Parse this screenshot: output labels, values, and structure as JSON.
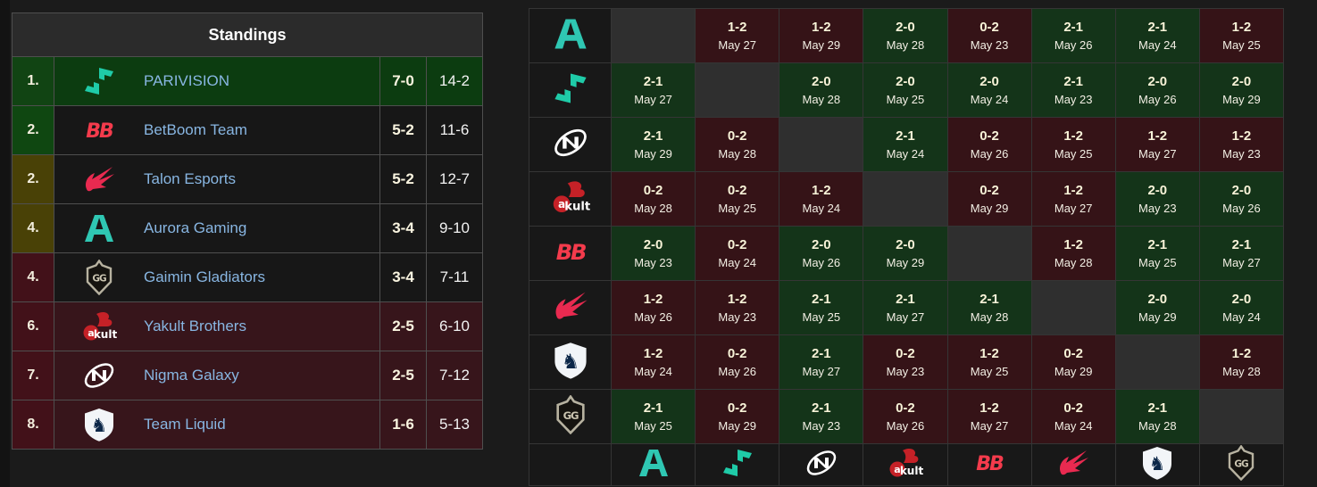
{
  "teams": {
    "parivision": "PARIVISION",
    "betboom": "BetBoom Team",
    "talon": "Talon Esports",
    "aurora": "Aurora Gaming",
    "gaimin": "Gaimin Gladiators",
    "yakult": "Yakult Brothers",
    "nigma": "Nigma Galaxy",
    "liquid": "Team Liquid"
  },
  "standings": {
    "title": "Standings",
    "rows": [
      {
        "rank": "1.",
        "team": "PARIVISION",
        "logo": "parivision",
        "series": "7-0",
        "games": "14-2",
        "rank_status": "green",
        "row_status": "win"
      },
      {
        "rank": "2.",
        "team": "BetBoom Team",
        "logo": "betboom",
        "series": "5-2",
        "games": "11-6",
        "rank_status": "green",
        "row_status": "none"
      },
      {
        "rank": "2.",
        "team": "Talon Esports",
        "logo": "talon",
        "series": "5-2",
        "games": "12-7",
        "rank_status": "olive",
        "row_status": "none"
      },
      {
        "rank": "4.",
        "team": "Aurora Gaming",
        "logo": "aurora",
        "series": "3-4",
        "games": "9-10",
        "rank_status": "olive",
        "row_status": "none"
      },
      {
        "rank": "4.",
        "team": "Gaimin Gladiators",
        "logo": "gaimin",
        "series": "3-4",
        "games": "7-11",
        "rank_status": "red",
        "row_status": "none"
      },
      {
        "rank": "6.",
        "team": "Yakult Brothers",
        "logo": "yakult",
        "series": "2-5",
        "games": "6-10",
        "rank_status": "red",
        "row_status": "loss"
      },
      {
        "rank": "7.",
        "team": "Nigma Galaxy",
        "logo": "nigma",
        "series": "2-5",
        "games": "7-12",
        "rank_status": "red",
        "row_status": "loss"
      },
      {
        "rank": "8.",
        "team": "Team Liquid",
        "logo": "liquid",
        "series": "1-6",
        "games": "5-13",
        "rank_status": "red",
        "row_status": "loss"
      }
    ]
  },
  "crosstable": {
    "rows": [
      {
        "team": "aurora",
        "cells": [
          null,
          {
            "score": "1-2",
            "date": "May 27",
            "result": "loss"
          },
          {
            "score": "1-2",
            "date": "May 29",
            "result": "loss"
          },
          {
            "score": "2-0",
            "date": "May 28",
            "result": "win"
          },
          {
            "score": "0-2",
            "date": "May 23",
            "result": "loss"
          },
          {
            "score": "2-1",
            "date": "May 26",
            "result": "win"
          },
          {
            "score": "2-1",
            "date": "May 24",
            "result": "win"
          },
          {
            "score": "1-2",
            "date": "May 25",
            "result": "loss"
          }
        ]
      },
      {
        "team": "parivision",
        "cells": [
          {
            "score": "2-1",
            "date": "May 27",
            "result": "win"
          },
          null,
          {
            "score": "2-0",
            "date": "May 28",
            "result": "win"
          },
          {
            "score": "2-0",
            "date": "May 25",
            "result": "win"
          },
          {
            "score": "2-0",
            "date": "May 24",
            "result": "win"
          },
          {
            "score": "2-1",
            "date": "May 23",
            "result": "win"
          },
          {
            "score": "2-0",
            "date": "May 26",
            "result": "win"
          },
          {
            "score": "2-0",
            "date": "May 29",
            "result": "win"
          }
        ]
      },
      {
        "team": "nigma",
        "cells": [
          {
            "score": "2-1",
            "date": "May 29",
            "result": "win"
          },
          {
            "score": "0-2",
            "date": "May 28",
            "result": "loss"
          },
          null,
          {
            "score": "2-1",
            "date": "May 24",
            "result": "win"
          },
          {
            "score": "0-2",
            "date": "May 26",
            "result": "loss"
          },
          {
            "score": "1-2",
            "date": "May 25",
            "result": "loss"
          },
          {
            "score": "1-2",
            "date": "May 27",
            "result": "loss"
          },
          {
            "score": "1-2",
            "date": "May 23",
            "result": "loss"
          }
        ]
      },
      {
        "team": "yakult",
        "cells": [
          {
            "score": "0-2",
            "date": "May 28",
            "result": "loss"
          },
          {
            "score": "0-2",
            "date": "May 25",
            "result": "loss"
          },
          {
            "score": "1-2",
            "date": "May 24",
            "result": "loss"
          },
          null,
          {
            "score": "0-2",
            "date": "May 29",
            "result": "loss"
          },
          {
            "score": "1-2",
            "date": "May 27",
            "result": "loss"
          },
          {
            "score": "2-0",
            "date": "May 23",
            "result": "win"
          },
          {
            "score": "2-0",
            "date": "May 26",
            "result": "win"
          }
        ]
      },
      {
        "team": "betboom",
        "cells": [
          {
            "score": "2-0",
            "date": "May 23",
            "result": "win"
          },
          {
            "score": "0-2",
            "date": "May 24",
            "result": "loss"
          },
          {
            "score": "2-0",
            "date": "May 26",
            "result": "win"
          },
          {
            "score": "2-0",
            "date": "May 29",
            "result": "win"
          },
          null,
          {
            "score": "1-2",
            "date": "May 28",
            "result": "loss"
          },
          {
            "score": "2-1",
            "date": "May 25",
            "result": "win"
          },
          {
            "score": "2-1",
            "date": "May 27",
            "result": "win"
          }
        ]
      },
      {
        "team": "talon",
        "cells": [
          {
            "score": "1-2",
            "date": "May 26",
            "result": "loss"
          },
          {
            "score": "1-2",
            "date": "May 23",
            "result": "loss"
          },
          {
            "score": "2-1",
            "date": "May 25",
            "result": "win"
          },
          {
            "score": "2-1",
            "date": "May 27",
            "result": "win"
          },
          {
            "score": "2-1",
            "date": "May 28",
            "result": "win"
          },
          null,
          {
            "score": "2-0",
            "date": "May 29",
            "result": "win"
          },
          {
            "score": "2-0",
            "date": "May 24",
            "result": "win"
          }
        ]
      },
      {
        "team": "liquid",
        "cells": [
          {
            "score": "1-2",
            "date": "May 24",
            "result": "loss"
          },
          {
            "score": "0-2",
            "date": "May 26",
            "result": "loss"
          },
          {
            "score": "2-1",
            "date": "May 27",
            "result": "win"
          },
          {
            "score": "0-2",
            "date": "May 23",
            "result": "loss"
          },
          {
            "score": "1-2",
            "date": "May 25",
            "result": "loss"
          },
          {
            "score": "0-2",
            "date": "May 29",
            "result": "loss"
          },
          null,
          {
            "score": "1-2",
            "date": "May 28",
            "result": "loss"
          }
        ]
      },
      {
        "team": "gaimin",
        "cells": [
          {
            "score": "2-1",
            "date": "May 25",
            "result": "win"
          },
          {
            "score": "0-2",
            "date": "May 29",
            "result": "loss"
          },
          {
            "score": "2-1",
            "date": "May 23",
            "result": "win"
          },
          {
            "score": "0-2",
            "date": "May 26",
            "result": "loss"
          },
          {
            "score": "1-2",
            "date": "May 27",
            "result": "loss"
          },
          {
            "score": "0-2",
            "date": "May 24",
            "result": "loss"
          },
          {
            "score": "2-1",
            "date": "May 28",
            "result": "win"
          },
          null
        ]
      }
    ],
    "footer_logos": [
      "aurora",
      "parivision",
      "nigma",
      "yakult",
      "betboom",
      "talon",
      "liquid",
      "gaimin"
    ]
  },
  "colors": {
    "page_bg": "#1b1b1b",
    "header_bg": "#2b2b2b",
    "link_blue": "#88b6e2",
    "win_cell": "#143419",
    "loss_cell": "#351317",
    "diagonal_cell": "#2f2f2f",
    "row_win": "#0c3c10",
    "row_loss": "#37151b",
    "rank_green": "#0f4711",
    "rank_olive": "#494106",
    "rank_red": "#421119",
    "aurora_teal": "#2fc7b3",
    "parivision_teal": "#1fcba8",
    "betboom_red": "#f43b4c",
    "talon_red": "#e92a50",
    "yakult_red": "#c52127",
    "liquid_navy": "#0c2748",
    "gaimin_silver": "#b7b2a0"
  }
}
